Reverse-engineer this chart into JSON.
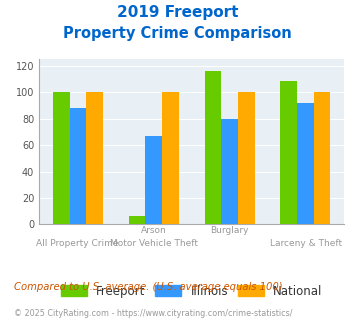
{
  "title_line1": "2019 Freeport",
  "title_line2": "Property Crime Comparison",
  "cat_labels_top": [
    "",
    "Arson",
    "Burglary",
    ""
  ],
  "cat_labels_bot": [
    "All Property Crime",
    "Motor Vehicle Theft",
    "",
    "Larceny & Theft"
  ],
  "freeport": [
    100,
    6,
    116,
    109
  ],
  "illinois": [
    88,
    67,
    80,
    92
  ],
  "national": [
    100,
    100,
    100,
    100
  ],
  "freeport_color": "#66cc00",
  "illinois_color": "#3399ff",
  "national_color": "#ffaa00",
  "ylim": [
    0,
    125
  ],
  "yticks": [
    0,
    20,
    40,
    60,
    80,
    100,
    120
  ],
  "bg_color": "#e8f0f5",
  "footnote1": "Compared to U.S. average. (U.S. average equals 100)",
  "footnote2": "© 2025 CityRating.com - https://www.cityrating.com/crime-statistics/",
  "legend_labels": [
    "Freeport",
    "Illinois",
    "National"
  ]
}
